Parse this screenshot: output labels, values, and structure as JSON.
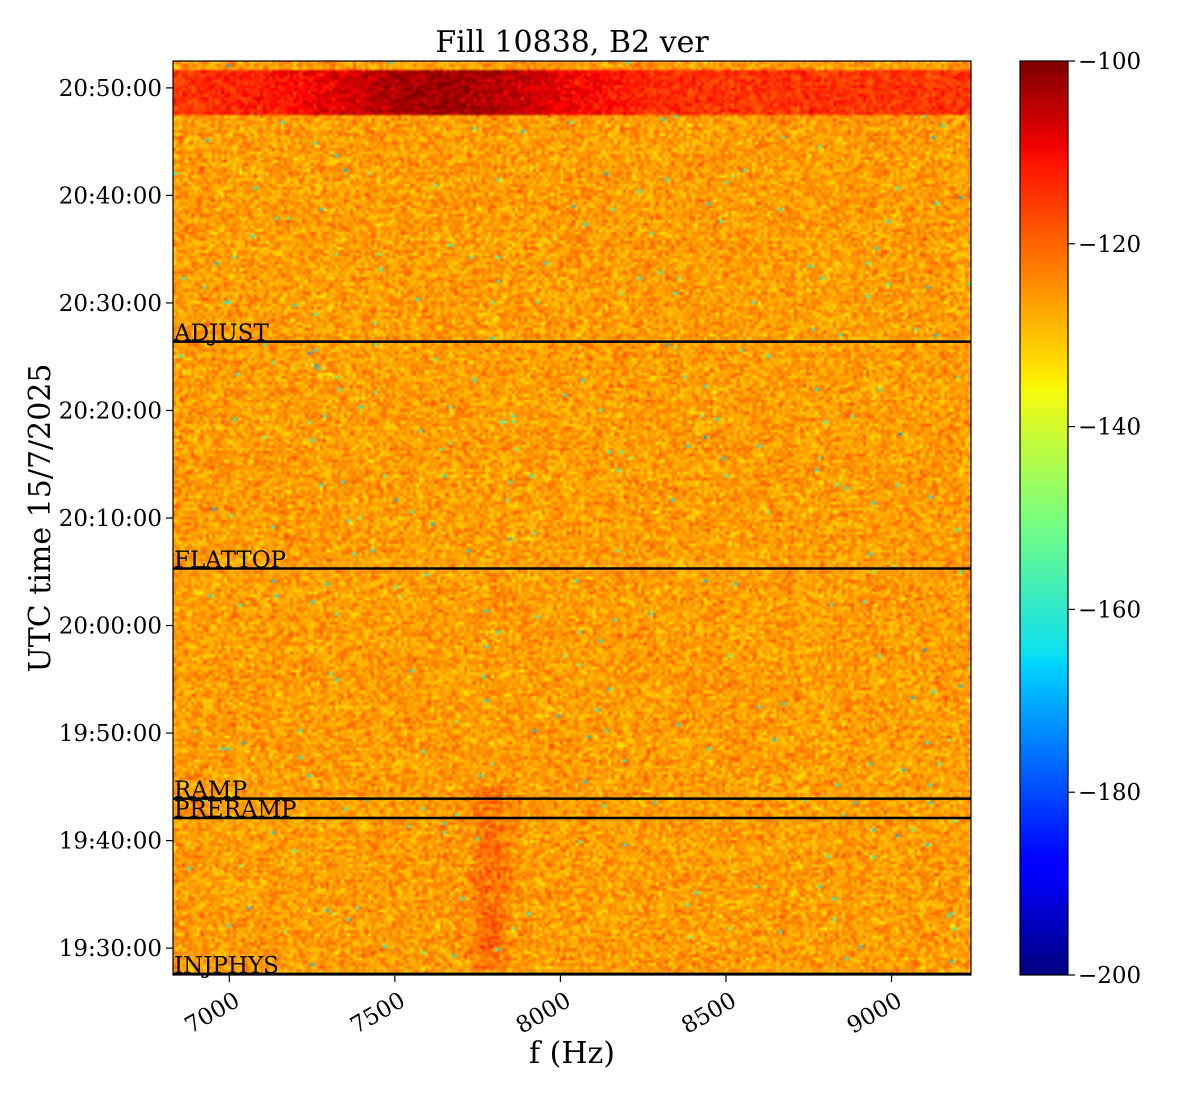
{
  "chart_data": {
    "type": "heatmap",
    "title": "Fill 10838, B2 ver",
    "xlabel": "f (Hz)",
    "ylabel": "UTC time 15/7/2025",
    "xlim": [
      6830,
      9240
    ],
    "ylim_time": [
      "19:27:30",
      "20:52:30"
    ],
    "x_ticks": [
      7000,
      7500,
      8000,
      8500,
      9000
    ],
    "x_tick_labels": [
      "7000",
      "7500",
      "8000",
      "8500",
      "9000"
    ],
    "y_ticks": [
      "19:30:00",
      "19:40:00",
      "19:50:00",
      "20:00:00",
      "20:10:00",
      "20:20:00",
      "20:30:00",
      "20:40:00",
      "20:50:00"
    ],
    "colorbar": {
      "colormap": "jet",
      "range": [
        -200,
        -100
      ],
      "ticks": [
        -100,
        -120,
        -140,
        -160,
        -180,
        -200
      ],
      "tick_labels": [
        "−100",
        "−120",
        "−140",
        "−160",
        "−180",
        "−200"
      ]
    },
    "background_level": -128,
    "features": [
      {
        "kind": "band",
        "t_start": "20:47:30",
        "t_end": "20:51:40",
        "f_center": 7640,
        "f_width": 420,
        "peak_level": -103,
        "edge_level": -118
      },
      {
        "kind": "streak",
        "t_start": "19:28:00",
        "t_end": "19:45:00",
        "f_center": 7790,
        "f_width": 60,
        "peak_level": -122
      }
    ],
    "phase_markers": [
      {
        "label": "ADJUST",
        "time": "20:26:24"
      },
      {
        "label": "FLATTOP",
        "time": "20:05:18"
      },
      {
        "label": "RAMP",
        "time": "19:43:54"
      },
      {
        "label": "PRERAMP",
        "time": "19:42:06"
      },
      {
        "label": "INJPHYS",
        "time": "19:27:36"
      }
    ]
  }
}
